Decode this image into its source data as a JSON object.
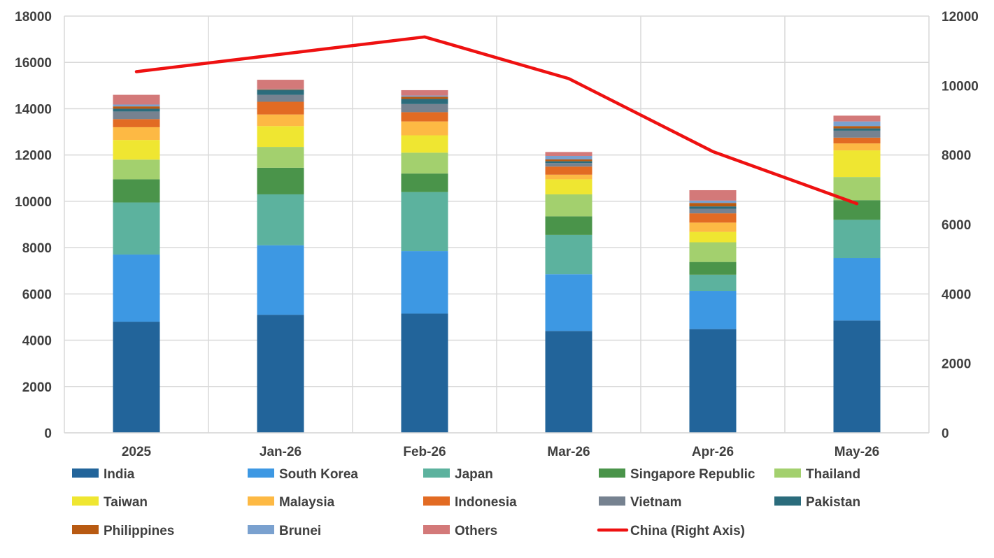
{
  "chart_data": {
    "type": "bar",
    "stacked": true,
    "categories": [
      "2025",
      "Jan-26",
      "Feb-26",
      "Mar-26",
      "Apr-26",
      "May-26"
    ],
    "left_axis": {
      "min": 0,
      "max": 18000,
      "step": 2000,
      "ticks": [
        "0",
        "2000",
        "4000",
        "6000",
        "8000",
        "10000",
        "12000",
        "14000",
        "16000",
        "18000"
      ]
    },
    "right_axis": {
      "min": 0,
      "max": 12000,
      "step": 2000,
      "ticks": [
        "0",
        "2000",
        "4000",
        "6000",
        "8000",
        "10000",
        "12000"
      ]
    },
    "grid": true,
    "legend_position": "bottom",
    "series": [
      {
        "name": "India",
        "color": "#22649a",
        "values": [
          4800,
          5100,
          5150,
          4400,
          4480,
          4850
        ]
      },
      {
        "name": "South Korea",
        "color": "#3d98e3",
        "values": [
          2900,
          3000,
          2700,
          2450,
          1650,
          2700
        ]
      },
      {
        "name": "Japan",
        "color": "#5cb29e",
        "values": [
          2250,
          2200,
          2550,
          1700,
          700,
          1650
        ]
      },
      {
        "name": "Singapore Republic",
        "color": "#4a944a",
        "values": [
          1000,
          1150,
          800,
          800,
          550,
          850
        ]
      },
      {
        "name": "Thailand",
        "color": "#a3d06e",
        "values": [
          850,
          900,
          900,
          950,
          850,
          1000
        ]
      },
      {
        "name": "Taiwan",
        "color": "#efe631",
        "values": [
          850,
          900,
          750,
          650,
          450,
          1150
        ]
      },
      {
        "name": "Malaysia",
        "color": "#fdb944",
        "values": [
          550,
          500,
          600,
          200,
          400,
          300
        ]
      },
      {
        "name": "Indonesia",
        "color": "#e26b23",
        "values": [
          350,
          550,
          400,
          350,
          400,
          250
        ]
      },
      {
        "name": "Vietnam",
        "color": "#768290",
        "values": [
          330,
          300,
          350,
          150,
          200,
          300
        ]
      },
      {
        "name": "Pakistan",
        "color": "#2b6c7c",
        "values": [
          120,
          200,
          220,
          80,
          100,
          100
        ]
      },
      {
        "name": "Philippines",
        "color": "#b85a12",
        "values": [
          100,
          30,
          100,
          80,
          150,
          100
        ]
      },
      {
        "name": "Brunei",
        "color": "#7aa1cf",
        "values": [
          80,
          30,
          50,
          150,
          100,
          200
        ]
      },
      {
        "name": "Others",
        "color": "#d37979",
        "values": [
          420,
          390,
          230,
          170,
          450,
          250
        ]
      }
    ],
    "line_series": {
      "name": "China (Right Axis)",
      "color": "#ee1111",
      "axis": "right",
      "values": [
        10400,
        10900,
        11400,
        10200,
        8100,
        6600
      ]
    }
  }
}
